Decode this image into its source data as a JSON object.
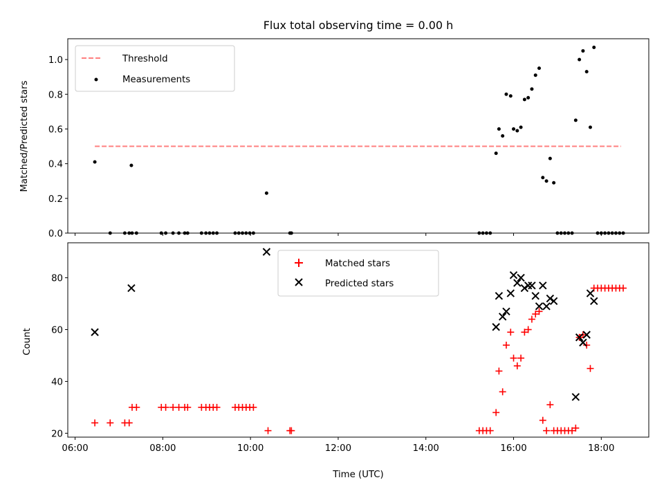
{
  "chart_data": [
    {
      "type": "scatter",
      "title": "Flux total observing time = 0.00 h",
      "xlabel": "",
      "ylabel": "Matched/Predicted stars",
      "xlim": [
        "05:50",
        "19:05"
      ],
      "ylim": [
        0.0,
        1.12
      ],
      "yticks": [
        0.0,
        0.2,
        0.4,
        0.6,
        0.8,
        1.0
      ],
      "ytick_labels": [
        "0.0",
        "0.2",
        "0.4",
        "0.6",
        "0.8",
        "1.0"
      ],
      "xticks": [
        "06:00",
        "08:00",
        "10:00",
        "12:00",
        "14:00",
        "16:00",
        "18:00"
      ],
      "xtick_labels": [
        "",
        "",
        "",
        "",
        "",
        "",
        ""
      ],
      "legend_position": "upper left",
      "grid": false,
      "threshold": {
        "name": "Threshold",
        "value": 0.5,
        "x_start": "06:27",
        "x_end": "18:27",
        "color": "#ff7f7f",
        "style": "dashed"
      },
      "series": [
        {
          "name": "Measurements",
          "color": "#000000",
          "marker": "dot",
          "points": [
            [
              "06:27",
              0.41
            ],
            [
              "07:17",
              0.39
            ],
            [
              "10:22",
              0.23
            ],
            [
              "06:48",
              0.0
            ],
            [
              "07:08",
              0.0
            ],
            [
              "07:14",
              0.0
            ],
            [
              "07:18",
              0.0
            ],
            [
              "07:24",
              0.0
            ],
            [
              "07:58",
              0.0
            ],
            [
              "08:04",
              0.0
            ],
            [
              "08:14",
              0.0
            ],
            [
              "08:22",
              0.0
            ],
            [
              "08:30",
              0.0
            ],
            [
              "08:34",
              0.0
            ],
            [
              "08:53",
              0.0
            ],
            [
              "08:59",
              0.0
            ],
            [
              "09:04",
              0.0
            ],
            [
              "09:09",
              0.0
            ],
            [
              "09:14",
              0.0
            ],
            [
              "09:39",
              0.0
            ],
            [
              "09:44",
              0.0
            ],
            [
              "09:49",
              0.0
            ],
            [
              "09:54",
              0.0
            ],
            [
              "09:59",
              0.0
            ],
            [
              "10:04",
              0.0
            ],
            [
              "10:54",
              0.0
            ],
            [
              "10:56",
              0.0
            ],
            [
              "15:13",
              0.0
            ],
            [
              "15:18",
              0.0
            ],
            [
              "15:23",
              0.0
            ],
            [
              "15:28",
              0.0
            ],
            [
              "15:36",
              0.46
            ],
            [
              "15:40",
              0.6
            ],
            [
              "15:45",
              0.56
            ],
            [
              "15:50",
              0.8
            ],
            [
              "15:56",
              0.79
            ],
            [
              "16:00",
              0.6
            ],
            [
              "16:05",
              0.59
            ],
            [
              "16:10",
              0.61
            ],
            [
              "16:15",
              0.77
            ],
            [
              "16:20",
              0.78
            ],
            [
              "16:25",
              0.83
            ],
            [
              "16:30",
              0.91
            ],
            [
              "16:35",
              0.95
            ],
            [
              "16:40",
              0.32
            ],
            [
              "16:45",
              0.3
            ],
            [
              "16:50",
              0.43
            ],
            [
              "16:55",
              0.29
            ],
            [
              "17:00",
              0.0
            ],
            [
              "17:05",
              0.0
            ],
            [
              "17:10",
              0.0
            ],
            [
              "17:15",
              0.0
            ],
            [
              "17:20",
              0.0
            ],
            [
              "17:25",
              0.65
            ],
            [
              "17:30",
              1.0
            ],
            [
              "17:35",
              1.05
            ],
            [
              "17:40",
              0.93
            ],
            [
              "17:45",
              0.61
            ],
            [
              "17:50",
              1.07
            ],
            [
              "17:55",
              0.0
            ],
            [
              "18:00",
              0.0
            ],
            [
              "18:05",
              0.0
            ],
            [
              "18:10",
              0.0
            ],
            [
              "18:15",
              0.0
            ],
            [
              "18:20",
              0.0
            ],
            [
              "18:25",
              0.0
            ],
            [
              "18:30",
              0.0
            ]
          ]
        }
      ]
    },
    {
      "type": "scatter",
      "title": "",
      "xlabel": "Time (UTC)",
      "ylabel": "Count",
      "xlim": [
        "05:50",
        "19:05"
      ],
      "ylim": [
        18.5,
        93.5
      ],
      "yticks": [
        20,
        40,
        60,
        80
      ],
      "ytick_labels": [
        "20",
        "40",
        "60",
        "80"
      ],
      "xticks": [
        "06:00",
        "08:00",
        "10:00",
        "12:00",
        "14:00",
        "16:00",
        "18:00"
      ],
      "xtick_labels": [
        "06:00",
        "08:00",
        "10:00",
        "12:00",
        "14:00",
        "16:00",
        "18:00"
      ],
      "legend_position": "upper center",
      "grid": false,
      "series": [
        {
          "name": "Matched stars",
          "color": "#ff0000",
          "marker": "plus",
          "points": [
            [
              "06:27",
              24
            ],
            [
              "06:48",
              24
            ],
            [
              "07:08",
              24
            ],
            [
              "07:14",
              24
            ],
            [
              "07:18",
              30
            ],
            [
              "07:24",
              30
            ],
            [
              "07:58",
              30
            ],
            [
              "08:04",
              30
            ],
            [
              "08:14",
              30
            ],
            [
              "08:22",
              30
            ],
            [
              "08:30",
              30
            ],
            [
              "08:34",
              30
            ],
            [
              "08:53",
              30
            ],
            [
              "08:59",
              30
            ],
            [
              "09:04",
              30
            ],
            [
              "09:09",
              30
            ],
            [
              "09:14",
              30
            ],
            [
              "09:39",
              30
            ],
            [
              "09:44",
              30
            ],
            [
              "09:49",
              30
            ],
            [
              "09:54",
              30
            ],
            [
              "09:59",
              30
            ],
            [
              "10:04",
              30
            ],
            [
              "10:24",
              21
            ],
            [
              "10:54",
              21
            ],
            [
              "10:56",
              21
            ],
            [
              "15:13",
              21
            ],
            [
              "15:18",
              21
            ],
            [
              "15:23",
              21
            ],
            [
              "15:28",
              21
            ],
            [
              "15:36",
              28
            ],
            [
              "15:40",
              44
            ],
            [
              "15:45",
              36
            ],
            [
              "15:50",
              54
            ],
            [
              "15:56",
              59
            ],
            [
              "16:00",
              49
            ],
            [
              "16:05",
              46
            ],
            [
              "16:10",
              49
            ],
            [
              "16:15",
              59
            ],
            [
              "16:20",
              60
            ],
            [
              "16:25",
              64
            ],
            [
              "16:30",
              66
            ],
            [
              "16:35",
              67
            ],
            [
              "16:40",
              25
            ],
            [
              "16:45",
              21
            ],
            [
              "16:50",
              31
            ],
            [
              "16:55",
              21
            ],
            [
              "17:00",
              21
            ],
            [
              "17:05",
              21
            ],
            [
              "17:10",
              21
            ],
            [
              "17:15",
              21
            ],
            [
              "17:20",
              21
            ],
            [
              "17:25",
              22
            ],
            [
              "17:30",
              57
            ],
            [
              "17:35",
              58
            ],
            [
              "17:40",
              54
            ],
            [
              "17:45",
              45
            ],
            [
              "17:50",
              76
            ],
            [
              "17:55",
              76
            ],
            [
              "18:00",
              76
            ],
            [
              "18:05",
              76
            ],
            [
              "18:10",
              76
            ],
            [
              "18:15",
              76
            ],
            [
              "18:20",
              76
            ],
            [
              "18:25",
              76
            ],
            [
              "18:30",
              76
            ]
          ]
        },
        {
          "name": "Predicted stars",
          "color": "#000000",
          "marker": "x",
          "points": [
            [
              "06:27",
              59
            ],
            [
              "07:17",
              76
            ],
            [
              "10:22",
              90
            ],
            [
              "15:36",
              61
            ],
            [
              "15:40",
              73
            ],
            [
              "15:45",
              65
            ],
            [
              "15:50",
              67
            ],
            [
              "15:56",
              74
            ],
            [
              "16:00",
              81
            ],
            [
              "16:05",
              78
            ],
            [
              "16:10",
              80
            ],
            [
              "16:15",
              76
            ],
            [
              "16:20",
              77
            ],
            [
              "16:25",
              77
            ],
            [
              "16:30",
              73
            ],
            [
              "16:35",
              69
            ],
            [
              "16:40",
              77
            ],
            [
              "16:45",
              69
            ],
            [
              "16:50",
              72
            ],
            [
              "16:55",
              71
            ],
            [
              "17:25",
              34
            ],
            [
              "17:30",
              57
            ],
            [
              "17:35",
              55
            ],
            [
              "17:40",
              58
            ],
            [
              "17:45",
              74
            ],
            [
              "17:50",
              71
            ]
          ]
        }
      ]
    }
  ]
}
